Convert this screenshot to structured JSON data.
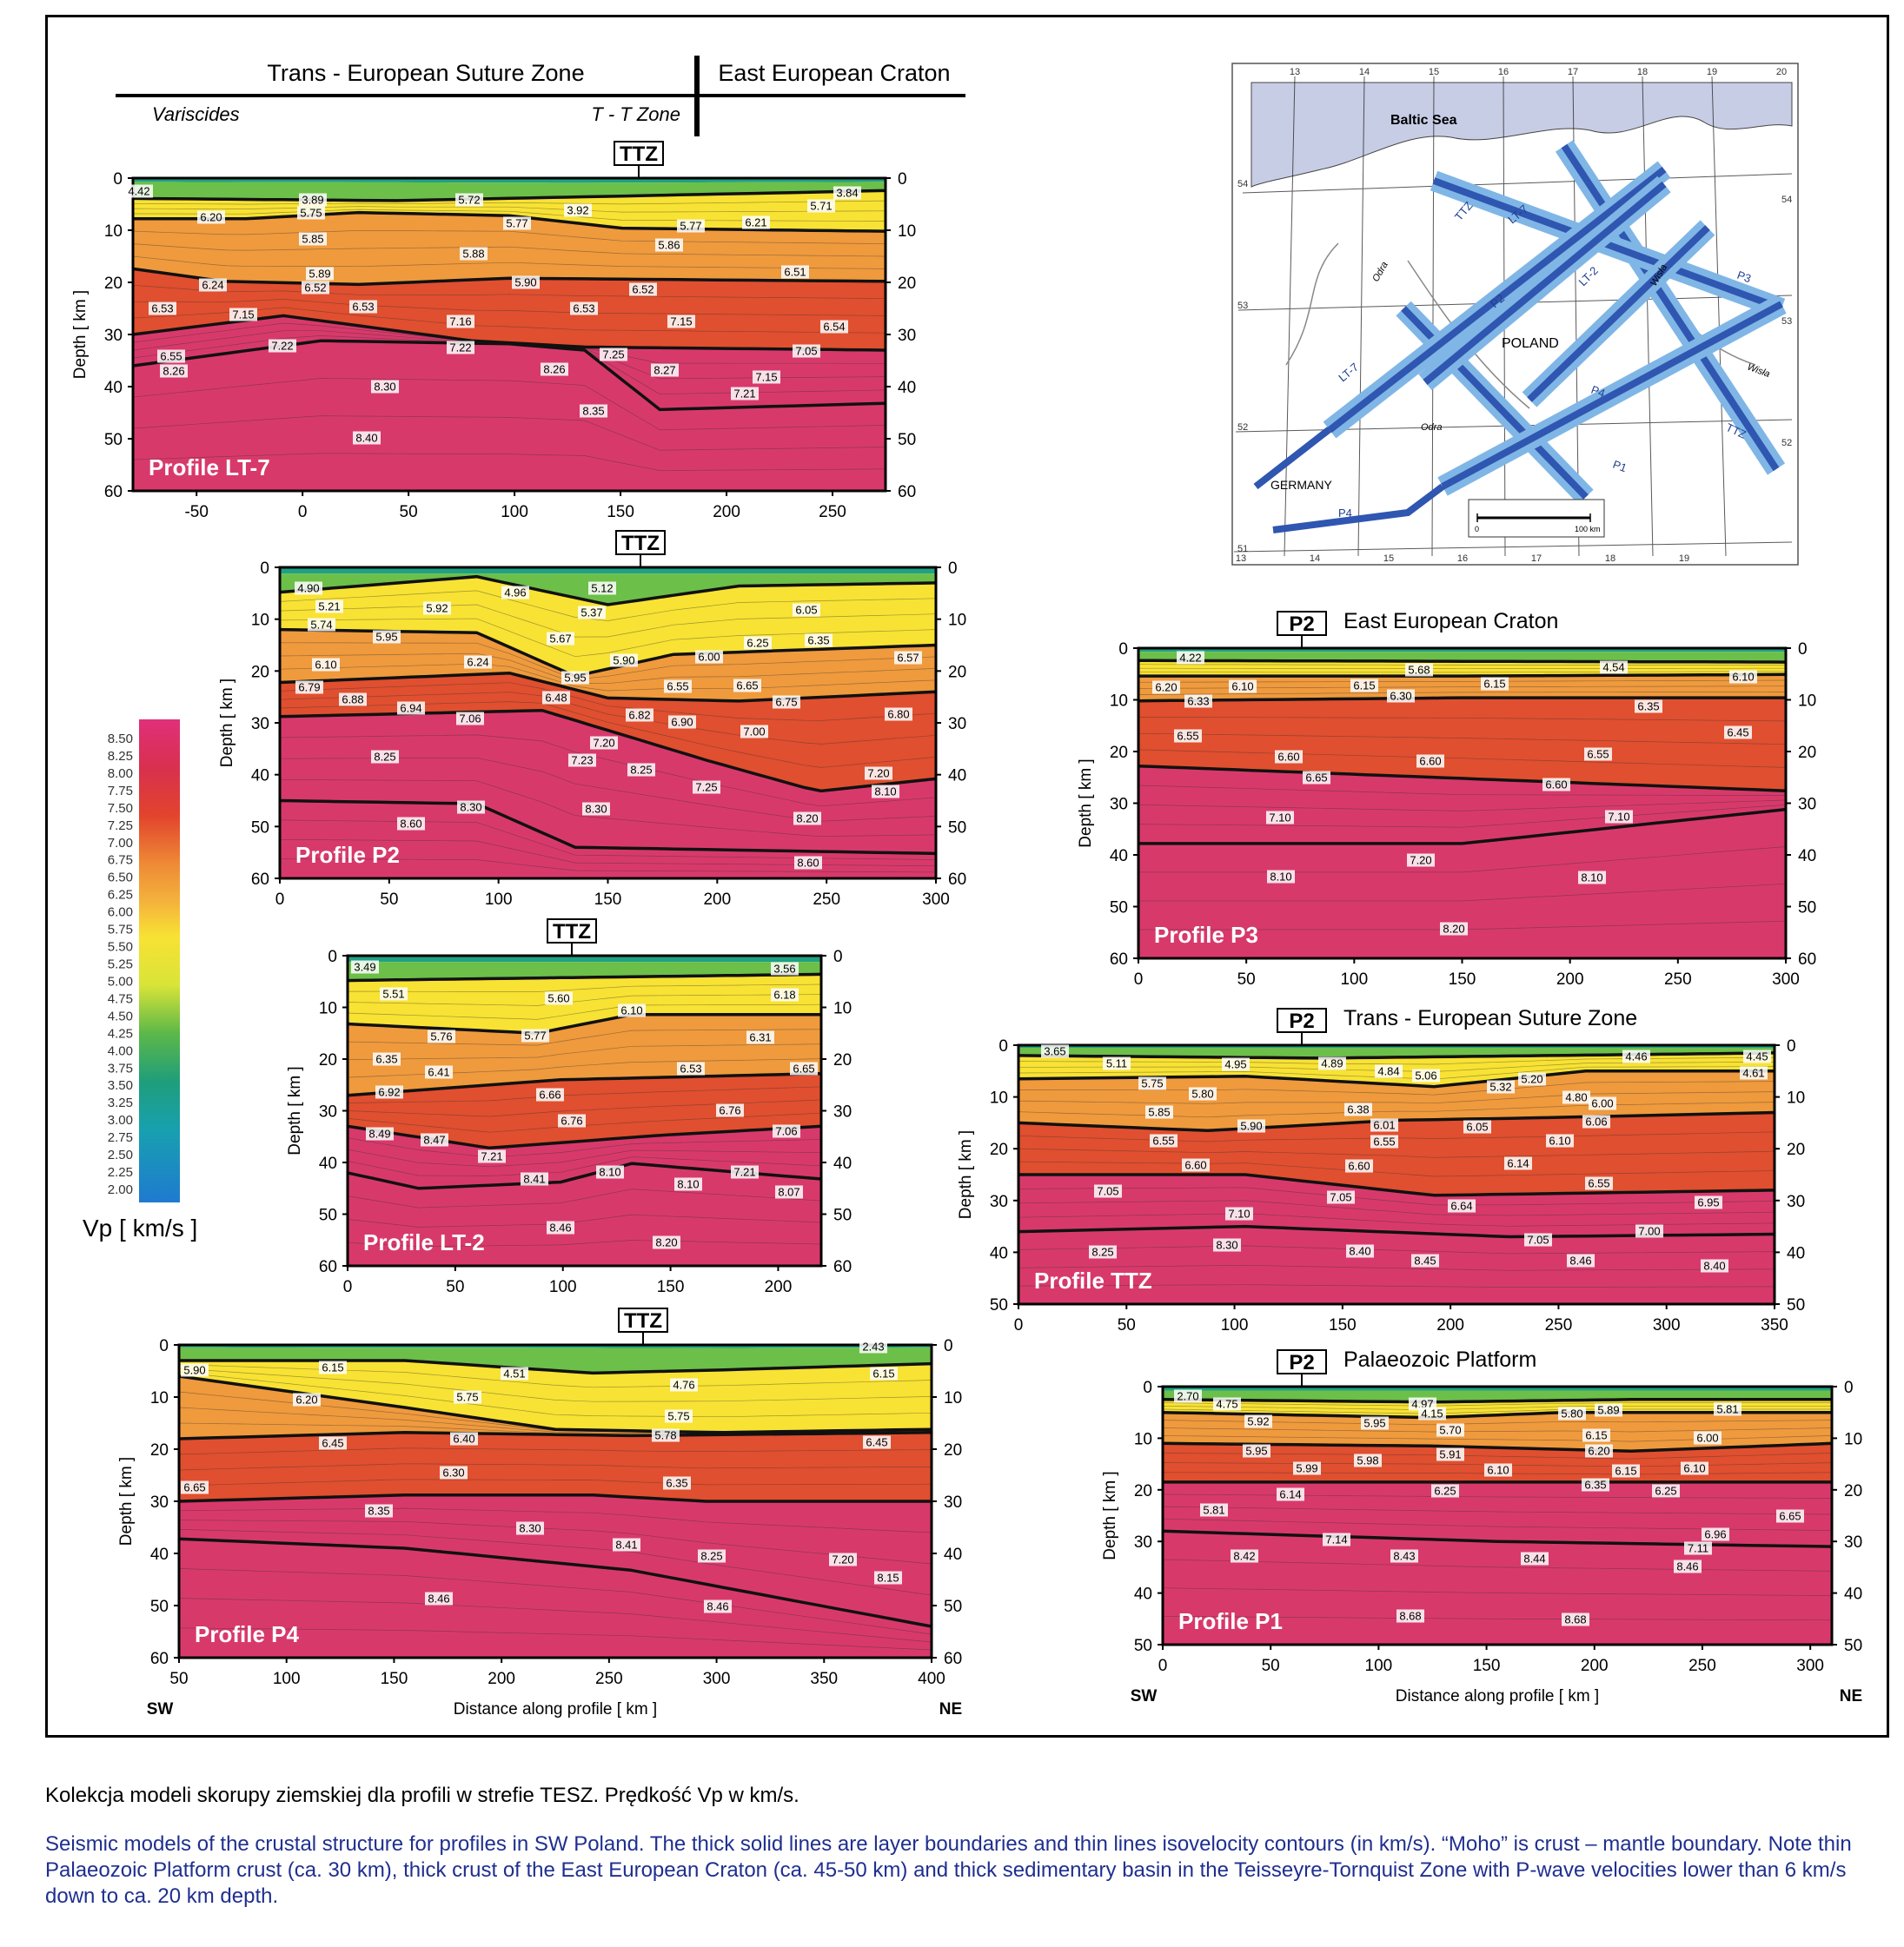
{
  "header": {
    "tesz": "Trans - European  Suture  Zone",
    "eec": "East  European  Craton",
    "variscides": "Variscides",
    "ttzone": "T - T  Zone"
  },
  "depth_label": "Depth  [ km ]",
  "colorbar": {
    "ticks": [
      "8.50",
      "8.25",
      "8.00",
      "7.75",
      "7.50",
      "7.25",
      "7.00",
      "6.75",
      "6.50",
      "6.25",
      "6.00",
      "5.75",
      "5.50",
      "5.25",
      "5.00",
      "4.75",
      "4.50",
      "4.25",
      "4.00",
      "3.75",
      "3.50",
      "3.25",
      "3.00",
      "2.75",
      "2.50",
      "2.25",
      "2.00"
    ],
    "label": "Vp  [ km/s ]"
  },
  "colors": {
    "mantle": "#d8396b",
    "lower": "#e04f2f",
    "middle": "#ef9a3d",
    "upper": "#f8e233",
    "sediment": "#6cbf48",
    "top": "#1fa184"
  },
  "profiles": [
    {
      "id": "lt7",
      "name": "Profile LT-7",
      "tag": "TTZ",
      "top_label": "",
      "xticks": [
        "-50",
        "0",
        "50",
        "100",
        "150",
        "200",
        "250"
      ],
      "yticks": [
        "0",
        "10",
        "20",
        "30",
        "40",
        "50",
        "60"
      ],
      "vels": [
        "4.42",
        "3.89",
        "5.72",
        "3.84",
        "6.20",
        "5.75",
        "5.77",
        "3.92",
        "5.77",
        "5.71",
        "5.85",
        "5.88",
        "5.86",
        "6.21",
        "5.89",
        "5.90",
        "6.51",
        "6.24",
        "6.52",
        "6.52",
        "6.53",
        "6.53",
        "7.15",
        "6.53",
        "7.15",
        "7.16",
        "6.54",
        "7.22",
        "7.22",
        "7.25",
        "7.05",
        "6.55",
        "8.26",
        "8.26",
        "8.27",
        "7.15",
        "8.30",
        "7.21",
        "8.35",
        "8.40"
      ]
    },
    {
      "id": "p2",
      "name": "Profile P2",
      "tag": "TTZ",
      "top_label": "",
      "xticks": [
        "0",
        "50",
        "100",
        "150",
        "200",
        "250",
        "300"
      ],
      "yticks": [
        "0",
        "10",
        "20",
        "30",
        "40",
        "50",
        "60"
      ],
      "vels": [
        "4.90",
        "4.96",
        "5.12",
        "5.21",
        "5.92",
        "5.37",
        "6.05",
        "5.74",
        "5.95",
        "5.67",
        "6.25",
        "6.35",
        "5.90",
        "6.00",
        "6.10",
        "6.24",
        "6.57",
        "5.95",
        "6.79",
        "6.55",
        "6.65",
        "6.88",
        "6.94",
        "6.48",
        "6.75",
        "7.06",
        "6.82",
        "6.90",
        "7.00",
        "6.80",
        "7.20",
        "8.25",
        "7.23",
        "8.25",
        "7.20",
        "7.25",
        "8.10",
        "8.30",
        "8.30",
        "8.20",
        "8.60",
        "8.60"
      ]
    },
    {
      "id": "lt2",
      "name": "Profile LT-2",
      "tag": "TTZ",
      "top_label": "",
      "xticks": [
        "0",
        "50",
        "100",
        "150",
        "200"
      ],
      "yticks": [
        "0",
        "10",
        "20",
        "30",
        "40",
        "50",
        "60"
      ],
      "vels": [
        "3.49",
        "3.56",
        "5.51",
        "5.60",
        "6.18",
        "6.10",
        "5.76",
        "5.77",
        "6.31",
        "6.35",
        "6.53",
        "6.65",
        "6.41",
        "6.92",
        "6.66",
        "6.76",
        "6.76",
        "8.49",
        "8.47",
        "7.06",
        "7.21",
        "8.10",
        "7.21",
        "8.41",
        "8.10",
        "8.07",
        "8.46",
        "8.20"
      ]
    },
    {
      "id": "p4",
      "name": "Profile P4",
      "tag": "TTZ",
      "top_label": "",
      "xticks": [
        "50",
        "100",
        "150",
        "200",
        "250",
        "300",
        "350",
        "400"
      ],
      "yticks": [
        "0",
        "10",
        "20",
        "30",
        "40",
        "50",
        "60"
      ],
      "vels": [
        "2.43",
        "5.90",
        "6.15",
        "4.51",
        "6.15",
        "4.76",
        "6.20",
        "5.75",
        "5.75",
        "5.78",
        "6.40",
        "6.45",
        "6.45",
        "6.30",
        "6.35",
        "6.65",
        "8.35",
        "8.30",
        "8.41",
        "8.25",
        "7.20",
        "8.15",
        "8.46",
        "8.46"
      ],
      "sw": "SW",
      "ne": "NE",
      "xlabel": "Distance along profile  [ km ]"
    },
    {
      "id": "p3",
      "name": "Profile P3",
      "tag": "P2",
      "top_label": "East  European  Craton",
      "xticks": [
        "0",
        "50",
        "100",
        "150",
        "200",
        "250",
        "300"
      ],
      "yticks": [
        "0",
        "10",
        "20",
        "30",
        "40",
        "50",
        "60"
      ],
      "vels": [
        "4.22",
        "5.68",
        "4.54",
        "6.20",
        "6.10",
        "6.15",
        "6.15",
        "6.10",
        "6.33",
        "6.30",
        "6.35",
        "6.45",
        "6.55",
        "6.60",
        "6.60",
        "6.55",
        "6.65",
        "6.60",
        "7.10",
        "7.10",
        "7.20",
        "8.10",
        "8.10",
        "8.20"
      ]
    },
    {
      "id": "ttz",
      "name": "Profile TTZ",
      "tag": "P2",
      "top_label": "Trans - European  Suture  Zone",
      "xticks": [
        "0",
        "50",
        "100",
        "150",
        "200",
        "250",
        "300",
        "350"
      ],
      "yticks": [
        "0",
        "10",
        "20",
        "30",
        "40",
        "50"
      ],
      "vels": [
        "3.65",
        "4.46",
        "4.45",
        "5.11",
        "4.95",
        "4.89",
        "4.84",
        "5.06",
        "5.20",
        "4.61",
        "5.75",
        "5.80",
        "5.32",
        "4.80",
        "5.85",
        "6.38",
        "6.00",
        "5.90",
        "6.01",
        "6.05",
        "6.06",
        "6.55",
        "6.55",
        "6.10",
        "6.60",
        "6.60",
        "6.14",
        "7.05",
        "7.05",
        "6.55",
        "7.10",
        "6.64",
        "6.95",
        "8.25",
        "8.30",
        "8.40",
        "7.05",
        "7.00",
        "8.45",
        "8.46",
        "8.40"
      ]
    },
    {
      "id": "p1",
      "name": "Profile P1",
      "tag": "P2",
      "top_label": "Palaeozoic  Platform",
      "xticks": [
        "0",
        "50",
        "100",
        "150",
        "200",
        "250",
        "300"
      ],
      "yticks": [
        "0",
        "10",
        "20",
        "30",
        "40",
        "50"
      ],
      "vels": [
        "2.70",
        "4.75",
        "4.97",
        "4.15",
        "5.92",
        "5.95",
        "5.70",
        "5.80",
        "5.89",
        "5.81",
        "5.95",
        "5.98",
        "5.91",
        "6.15",
        "6.20",
        "6.00",
        "5.99",
        "6.10",
        "6.15",
        "6.10",
        "6.25",
        "6.35",
        "6.25",
        "6.14",
        "5.81",
        "6.65",
        "7.14",
        "6.96",
        "7.11",
        "8.42",
        "8.43",
        "8.44",
        "8.46",
        "8.68",
        "8.68"
      ],
      "sw": "SW",
      "ne": "NE",
      "xlabel": "Distance along profile  [ km ]"
    }
  ],
  "map": {
    "sea": "Baltic Sea",
    "country": "POLAND",
    "germany": "GERMANY",
    "rivers": [
      "Odra",
      "Wisła",
      "Odra",
      "Wisła"
    ],
    "lines": [
      "TTZ",
      "LT-7",
      "P2",
      "LT-2",
      "P3",
      "P4",
      "P1",
      "LT-7",
      "TTZ",
      "P4"
    ],
    "top_ticks": [
      "13",
      "14",
      "15",
      "16",
      "17",
      "18",
      "19",
      "20"
    ],
    "bottom_ticks": [
      "13",
      "14",
      "15",
      "16",
      "17",
      "18",
      "19"
    ],
    "left_ticks": [
      "54",
      "53",
      "52",
      "51"
    ],
    "right_ticks": [
      "54",
      "53",
      "52"
    ],
    "scale": [
      "0",
      "100 km"
    ]
  },
  "captions": {
    "pl": "Kolekcja modeli skorupy ziemskiej dla profili w strefie TESZ. Prędkość Vp w km/s.",
    "en": "Seismic models of the crustal structure for profiles in SW Poland. The thick solid lines are layer boundaries and thin lines isovelocity contours (in km/s). “Moho” is crust – mantle boundary. Note thin Palaeozoic Platform crust (ca. 30 km), thick crust of the East European Craton (ca. 45-50 km) and thick sedimentary basin in the Teisseyre-Tornquist Zone with P-wave velocities lower than 6 km/s down to ca. 20 km depth."
  }
}
